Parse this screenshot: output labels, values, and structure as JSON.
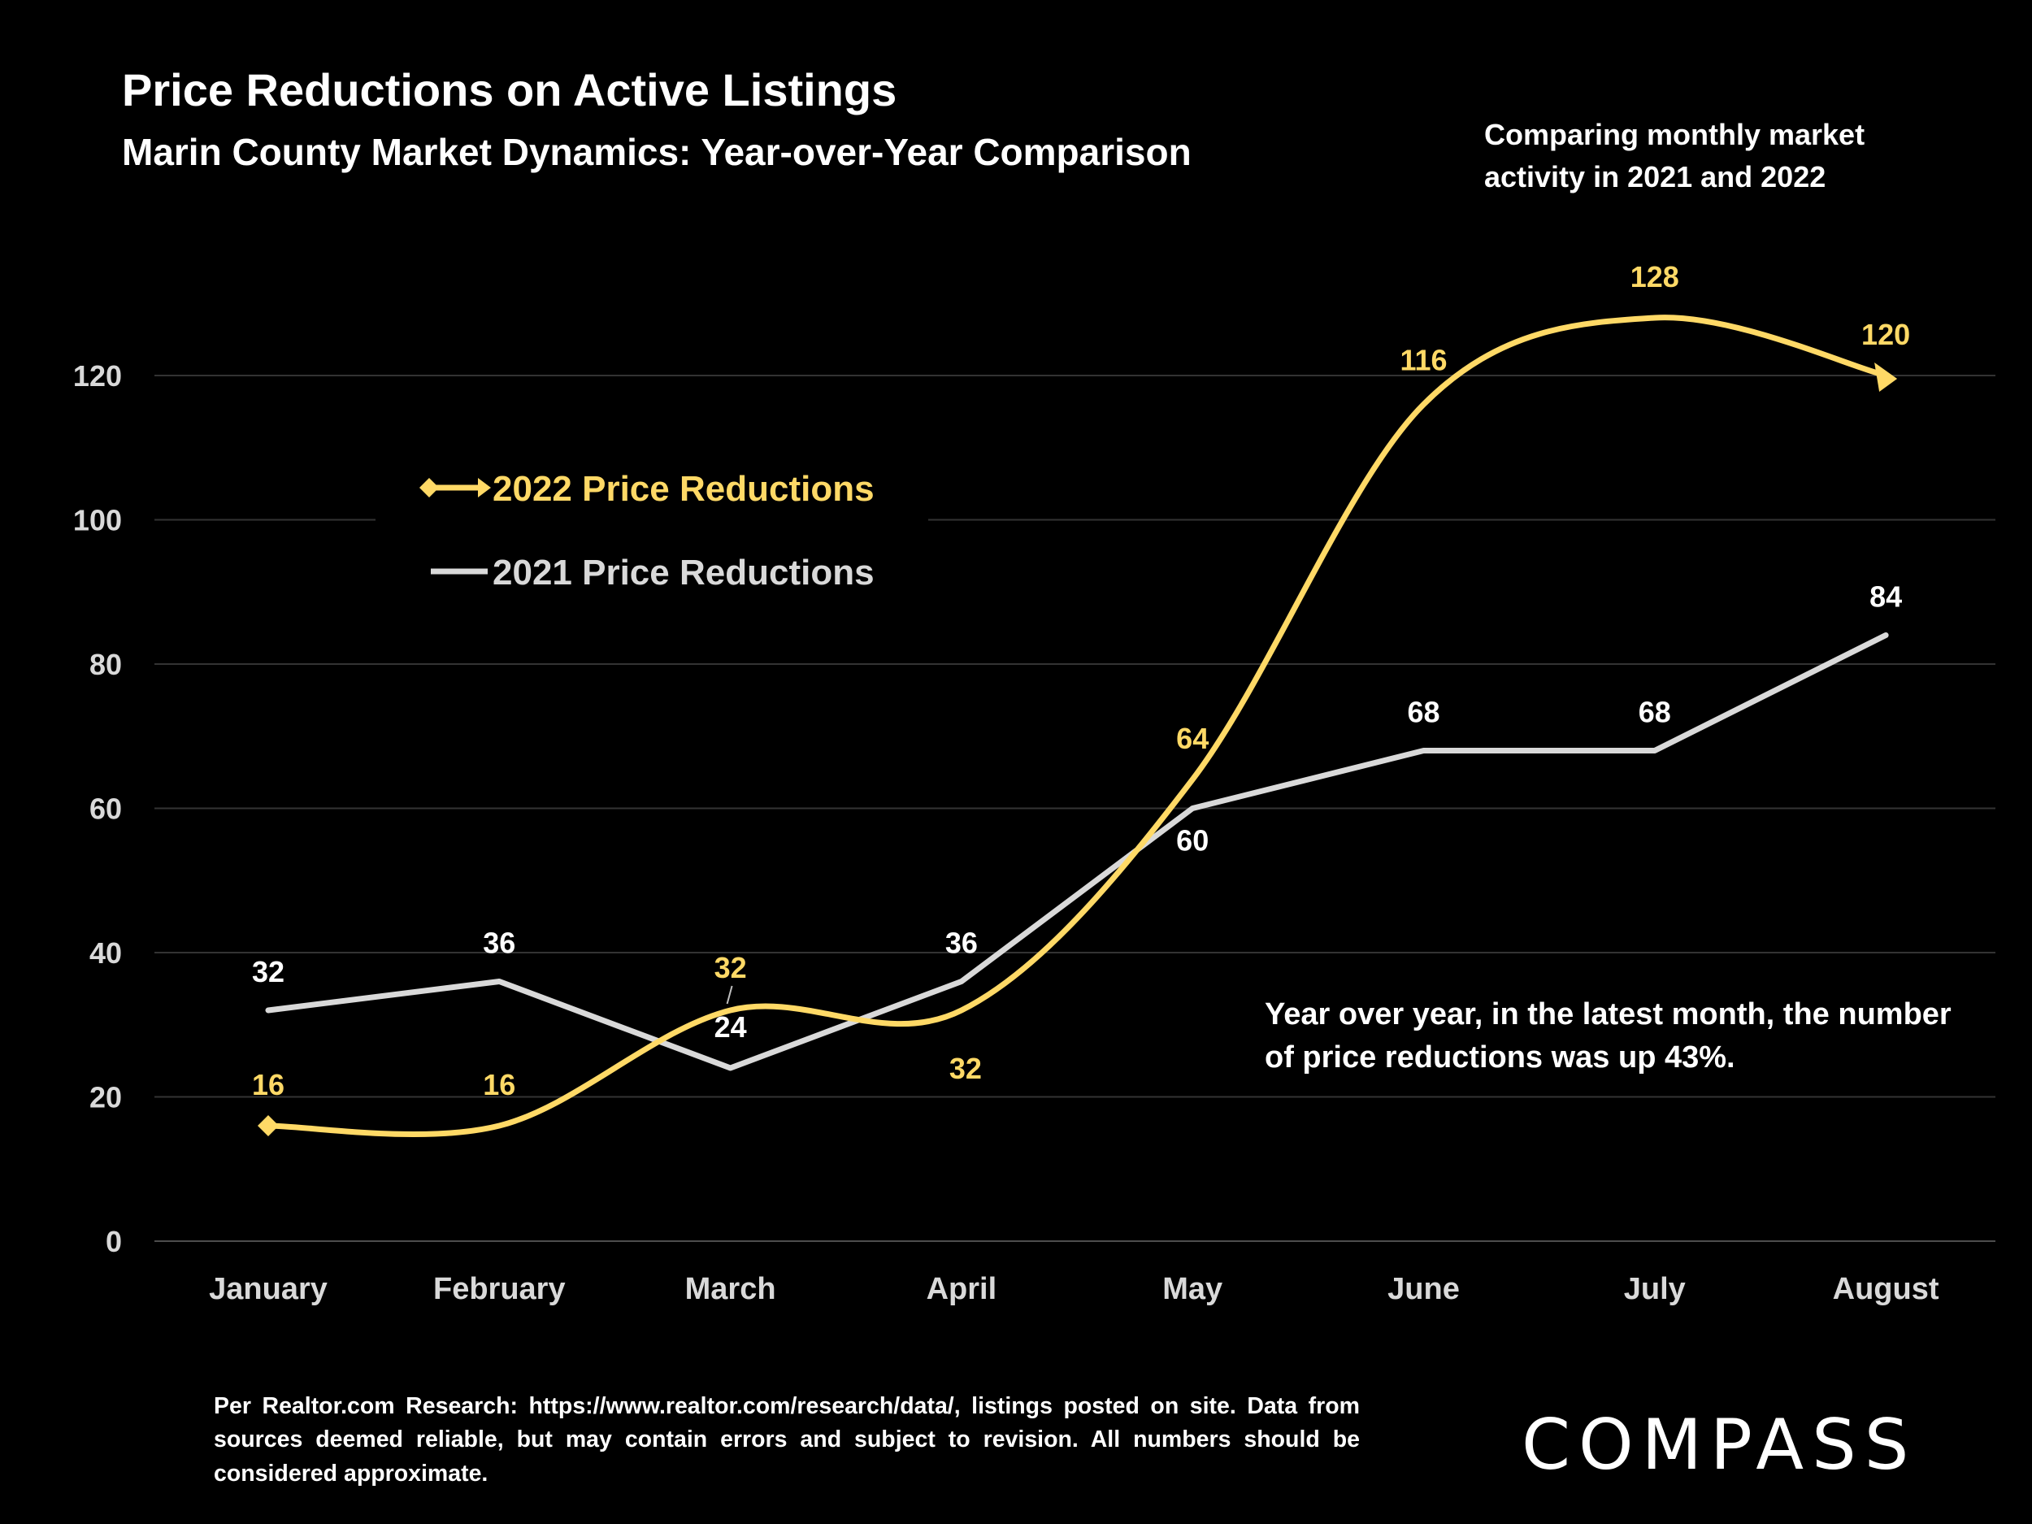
{
  "title": "Price Reductions on Active Listings",
  "subtitle": "Marin County Market Dynamics: Year-over-Year Comparison",
  "side_note": "Comparing monthly market activity in 2021 and 2022",
  "callout": "Year over year, in the latest month, the number of price reductions was up 43%.",
  "footnote": "Per Realtor.com Research:  https://www.realtor.com/research/data/, listings posted on site. Data from sources deemed reliable, but may contain errors and subject to revision. All numbers should be considered approximate.",
  "logo_text": "COMPASS",
  "colors": {
    "series_2022": "#FFD966",
    "series_2021": "#D9D9D9",
    "gridline": "#333333",
    "background": "#000000"
  },
  "chart_data": {
    "type": "line",
    "categories": [
      "January",
      "February",
      "March",
      "April",
      "May",
      "June",
      "July",
      "August"
    ],
    "ylim": [
      0,
      120
    ],
    "yticks": [
      0,
      20,
      40,
      60,
      80,
      100,
      120
    ],
    "grid": true,
    "legend_position": "upper-left",
    "series": [
      {
        "name": "2022 Price Reductions",
        "values": [
          16,
          16,
          32,
          32,
          64,
          116,
          128,
          120
        ],
        "color": "#FFD966",
        "smooth": true,
        "markers": "diamond-start-arrow-end"
      },
      {
        "name": "2021 Price Reductions",
        "values": [
          32,
          36,
          24,
          36,
          60,
          68,
          68,
          84
        ],
        "color": "#D9D9D9",
        "smooth": false
      }
    ]
  }
}
